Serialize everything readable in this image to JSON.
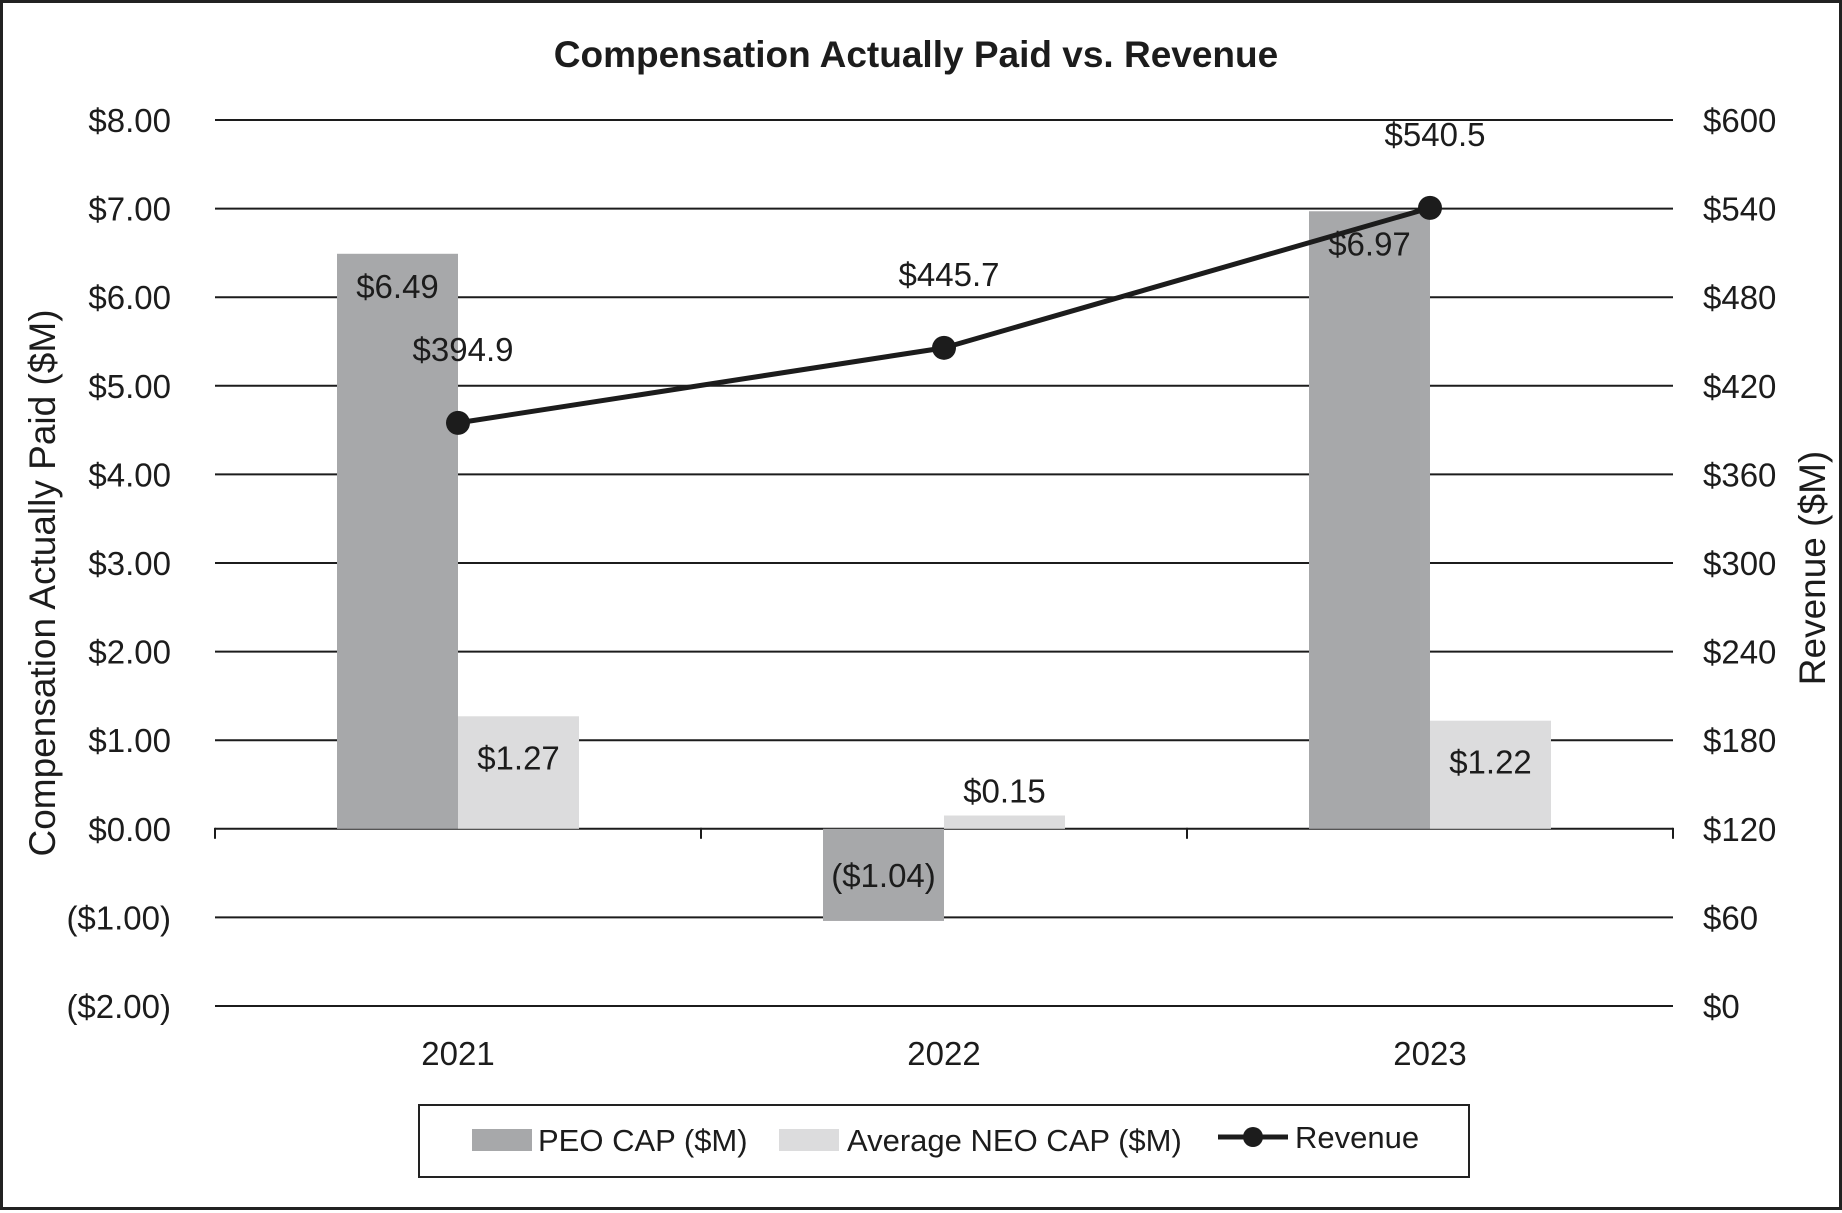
{
  "chart_data": {
    "type": "bar",
    "title": "Compensation Actually Paid vs. Revenue",
    "ylabel_left": "Compensation Actually Paid ($M)",
    "ylabel_right": "Revenue ($M)",
    "categories": [
      "2021",
      "2022",
      "2023"
    ],
    "left_axis": {
      "ylim": [
        -2,
        8
      ],
      "ticks": [
        8,
        7,
        6,
        5,
        4,
        3,
        2,
        1,
        0,
        -1,
        -2
      ],
      "tick_labels": [
        "$8.00",
        "$7.00",
        "$6.00",
        "$5.00",
        "$4.00",
        "$3.00",
        "$2.00",
        "$1.00",
        "$0.00",
        "($1.00)",
        "($2.00)"
      ]
    },
    "right_axis": {
      "ylim": [
        0,
        600
      ],
      "ticks": [
        600,
        540,
        480,
        420,
        360,
        300,
        240,
        180,
        120,
        60,
        0
      ],
      "tick_labels": [
        "$600",
        "$540",
        "$480",
        "$420",
        "$360",
        "$300",
        "$240",
        "$180",
        "$120",
        "$60",
        "$0"
      ]
    },
    "series": [
      {
        "name": "PEO CAP ($M)",
        "kind": "bar",
        "axis": "left",
        "color": "#a7a8aa",
        "values": [
          6.49,
          -1.04,
          6.97
        ],
        "labels": [
          "$6.49",
          "($1.04)",
          "$6.97"
        ]
      },
      {
        "name": "Average NEO CAP ($M)",
        "kind": "bar",
        "axis": "left",
        "color": "#dcdcdd",
        "values": [
          1.27,
          0.15,
          1.22
        ],
        "labels": [
          "$1.27",
          "$0.15",
          "$1.22"
        ]
      },
      {
        "name": "Revenue",
        "kind": "line",
        "axis": "right",
        "color": "#1c1c1c",
        "values": [
          394.9,
          445.7,
          540.5
        ],
        "labels": [
          "$394.9",
          "$445.7",
          "$540.5"
        ]
      }
    ],
    "grid": true,
    "legend": "bottom"
  }
}
